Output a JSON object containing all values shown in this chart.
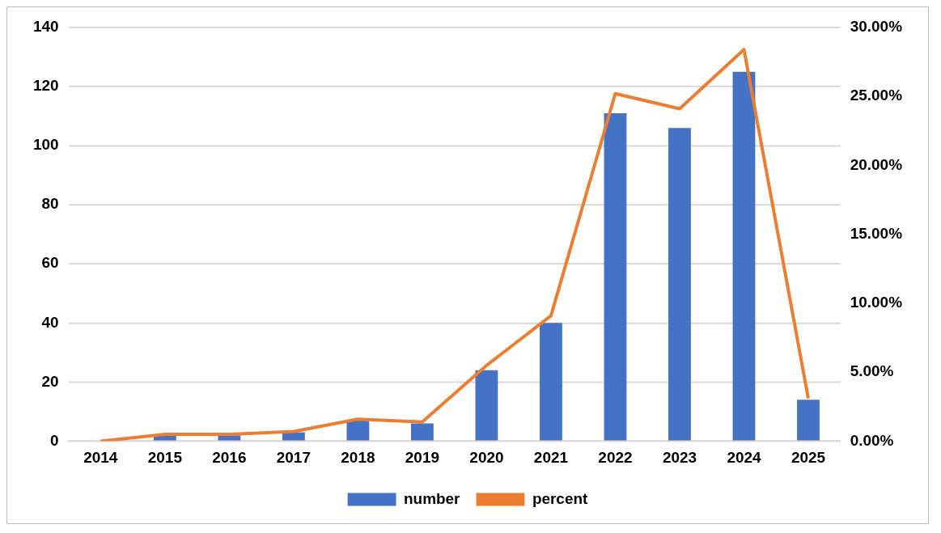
{
  "chart_data": {
    "type": "bar",
    "categories": [
      "2014",
      "2015",
      "2016",
      "2017",
      "2018",
      "2019",
      "2020",
      "2021",
      "2022",
      "2023",
      "2024",
      "2025"
    ],
    "series": [
      {
        "name": "number",
        "color": "#4472c4",
        "values": [
          0,
          2,
          2,
          3,
          7,
          6,
          24,
          40,
          111,
          106,
          125,
          14
        ]
      },
      {
        "name": "percent",
        "type": "line",
        "axis": "y2",
        "color": "#ed7d31",
        "values": [
          0,
          0.5,
          0.5,
          0.7,
          1.6,
          1.4,
          5.5,
          9.1,
          25.2,
          24.1,
          28.4,
          3.1
        ]
      }
    ],
    "ylim": [
      0,
      140
    ],
    "yticks": [
      0,
      20,
      40,
      60,
      80,
      100,
      120,
      140
    ],
    "y2lim": [
      0,
      30
    ],
    "y2ticks": [
      {
        "value": 0,
        "label": "0.00%"
      },
      {
        "value": 5,
        "label": "5.00%"
      },
      {
        "value": 10,
        "label": "10.00%"
      },
      {
        "value": 15,
        "label": "15.00%"
      },
      {
        "value": 20,
        "label": "20.00%"
      },
      {
        "value": 25,
        "label": "25.00%"
      },
      {
        "value": 30,
        "label": "30.00%"
      }
    ],
    "grid": "y",
    "legend": "bottom",
    "marker": "none"
  }
}
